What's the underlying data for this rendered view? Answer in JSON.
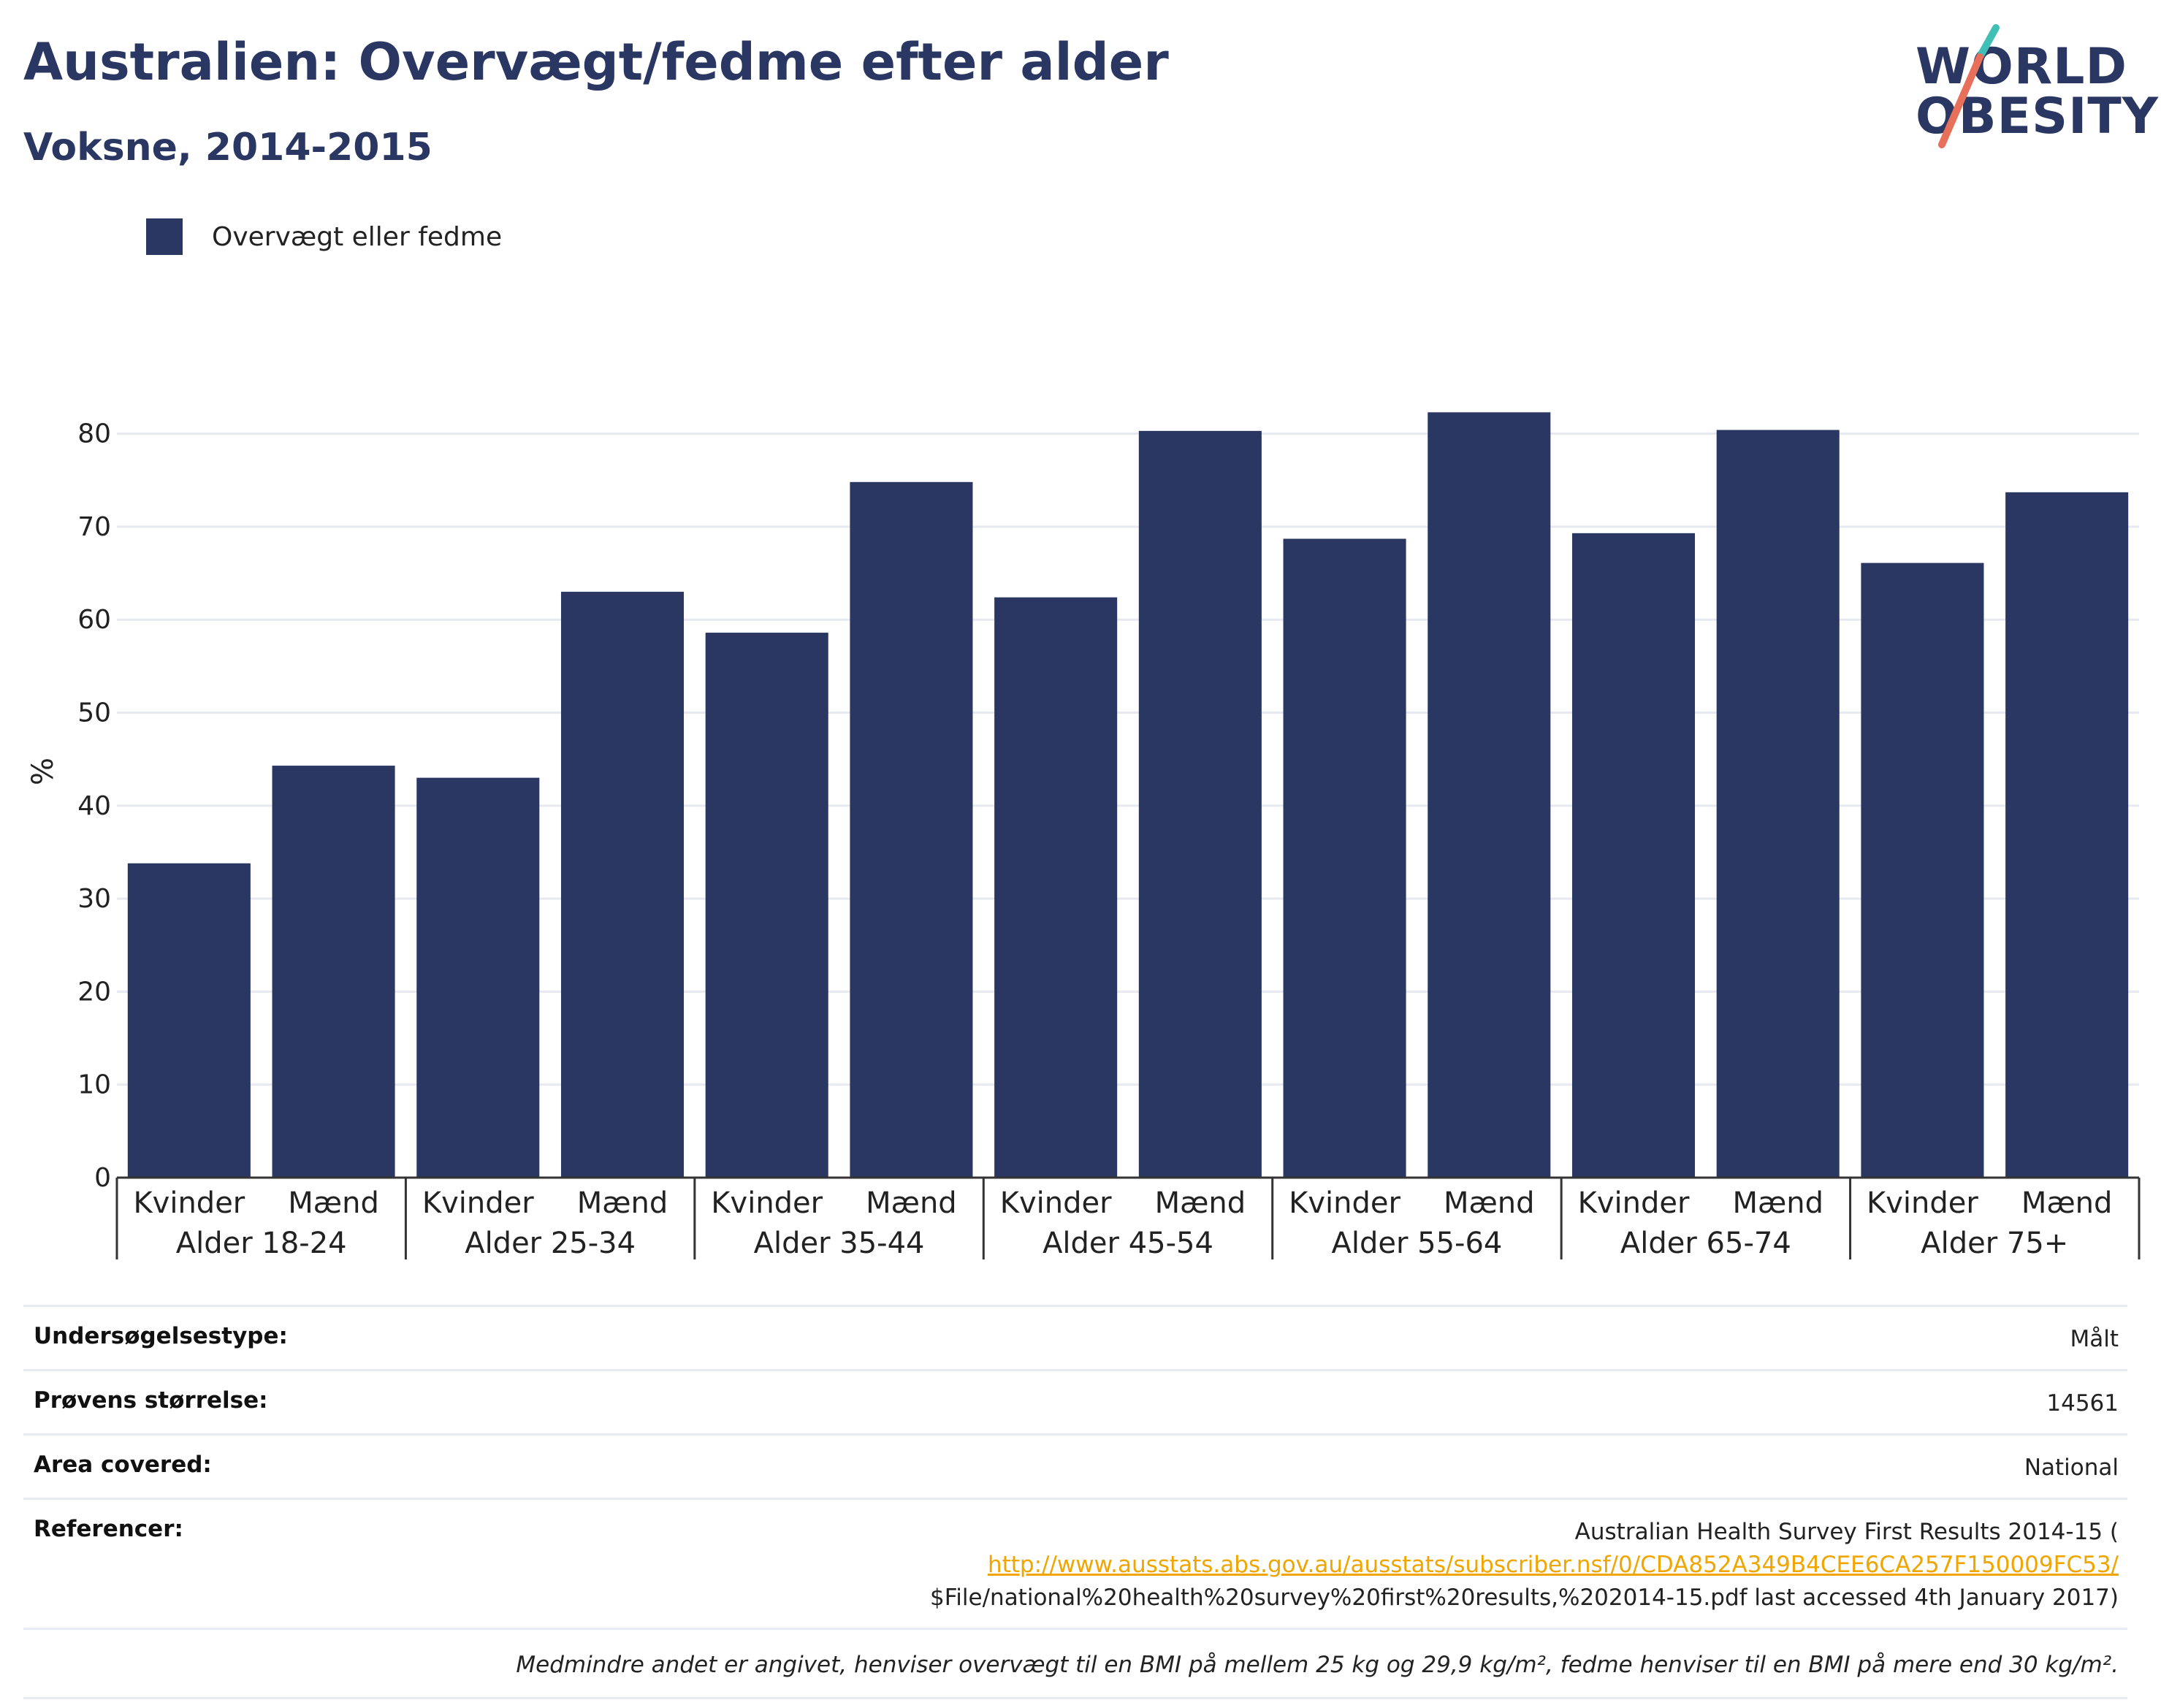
{
  "header": {
    "title": "Australien: Overvægt/fedme efter alder",
    "subtitle": "Voksne, 2014-2015"
  },
  "logo": {
    "line1": "WORLD",
    "line2": "OBESITY",
    "slash_colors": [
      "#3fbfb5",
      "#e8705a"
    ]
  },
  "legend": {
    "items": [
      {
        "label": "Overvægt eller fedme",
        "color": "#2a3763"
      }
    ]
  },
  "chart_data": {
    "type": "bar",
    "ylabel": "%",
    "ylim": [
      0,
      85
    ],
    "yticks": [
      0,
      10,
      20,
      30,
      40,
      50,
      60,
      70,
      80
    ],
    "grid": true,
    "legend_position": "top-left",
    "groups": [
      {
        "label": "Alder 18-24",
        "bars": [
          {
            "label": "Kvinder",
            "value": 33.8
          },
          {
            "label": "Mænd",
            "value": 44.3
          }
        ]
      },
      {
        "label": "Alder 25-34",
        "bars": [
          {
            "label": "Kvinder",
            "value": 43.0
          },
          {
            "label": "Mænd",
            "value": 63.0
          }
        ]
      },
      {
        "label": "Alder 35-44",
        "bars": [
          {
            "label": "Kvinder",
            "value": 58.6
          },
          {
            "label": "Mænd",
            "value": 74.8
          }
        ]
      },
      {
        "label": "Alder 45-54",
        "bars": [
          {
            "label": "Kvinder",
            "value": 62.4
          },
          {
            "label": "Mænd",
            "value": 80.3
          }
        ]
      },
      {
        "label": "Alder 55-64",
        "bars": [
          {
            "label": "Kvinder",
            "value": 68.7
          },
          {
            "label": "Mænd",
            "value": 82.3
          }
        ]
      },
      {
        "label": "Alder 65-74",
        "bars": [
          {
            "label": "Kvinder",
            "value": 69.3
          },
          {
            "label": "Mænd",
            "value": 80.4
          }
        ]
      },
      {
        "label": "Alder 75+",
        "bars": [
          {
            "label": "Kvinder",
            "value": 66.1
          },
          {
            "label": "Mænd",
            "value": 73.7
          }
        ]
      }
    ],
    "series": [
      {
        "name": "Overvægt eller fedme",
        "color": "#2a3763"
      }
    ]
  },
  "info": {
    "rows": [
      {
        "key": "Undersøgelsestype:",
        "value": "Målt"
      },
      {
        "key": "Prøvens størrelse:",
        "value": "14561"
      },
      {
        "key": "Area covered:",
        "value": "National"
      }
    ],
    "references": {
      "key": "Referencer:",
      "line1": "Australian Health Survey First Results 2014-15 (",
      "link": "http://www.ausstats.abs.gov.au/ausstats/subscriber.nsf/0/CDA852A349B4CEE6CA257F150009FC53/",
      "line3": "$File/national%20health%20survey%20first%20results,%202014-15.pdf last accessed 4th January 2017)"
    },
    "note": "Medmindre andet er angivet, henviser overvægt til en BMI på mellem 25 kg og 29,9 kg/m², fedme henviser til en BMI på mere end 30 kg/m²."
  }
}
